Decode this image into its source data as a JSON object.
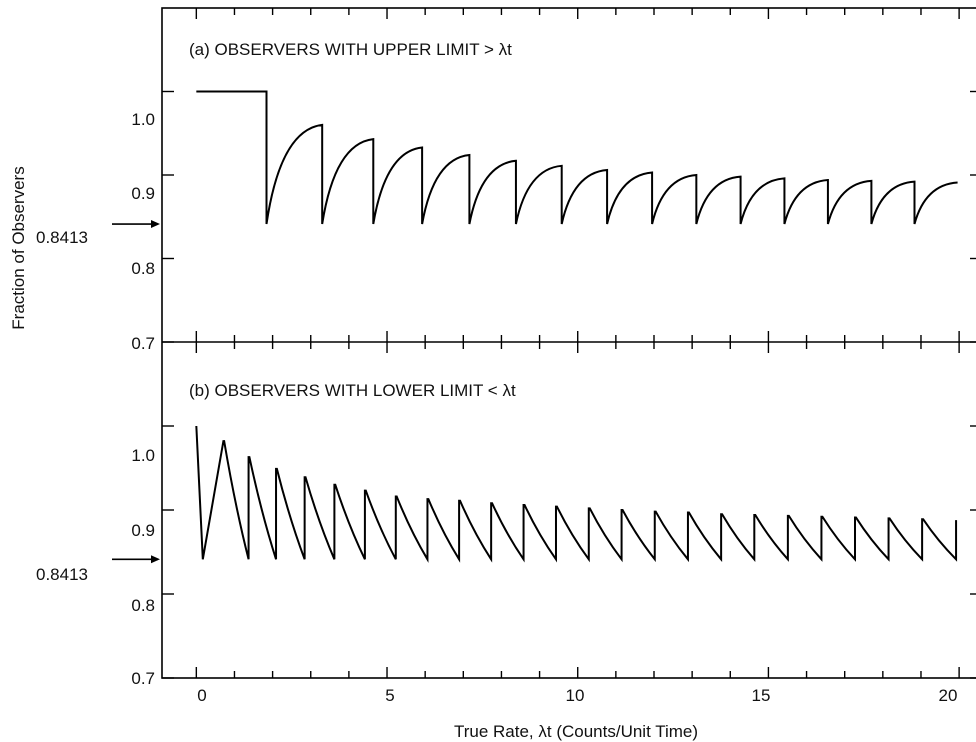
{
  "chart_data": {
    "type": "line",
    "ylabel": "Fraction of Observers",
    "xlabel": "True Rate, λt (Counts/Unit Time)",
    "x_ticks": [
      "0",
      "5",
      "10",
      "15",
      "20"
    ],
    "xlim": [
      -0.9,
      20.6
    ],
    "panels": [
      {
        "id": "a",
        "title": "(a) OBSERVERS WITH UPPER LIMIT > λt",
        "ylim": [
          0.7,
          1.1
        ],
        "y_ticks": [
          "1.0",
          "0.9",
          "0.8",
          "0.7"
        ],
        "y_tick_values": [
          1.0,
          0.9,
          0.8,
          0.7
        ],
        "reference": {
          "label": "0.8413",
          "value": 0.8413
        },
        "jump_x": [
          1.84,
          3.3,
          4.64,
          5.92,
          7.16,
          8.38,
          9.58,
          10.77,
          11.95,
          13.11,
          14.27,
          15.42,
          16.56,
          17.7,
          18.83,
          19.96
        ],
        "jump_top": [
          1.0,
          0.96,
          0.943,
          0.933,
          0.924,
          0.917,
          0.911,
          0.906,
          0.903,
          0.9,
          0.898,
          0.896,
          0.894,
          0.893,
          0.892,
          0.891
        ],
        "jump_bottom": 0.8413,
        "start": {
          "x": 0,
          "y": 1.0
        },
        "end_x": 19.96
      },
      {
        "id": "b",
        "title": "(b) OBSERVERS WITH LOWER LIMIT < λt",
        "ylim": [
          0.7,
          1.1
        ],
        "y_ticks": [
          "1.0",
          "0.9",
          "0.8",
          "0.7"
        ],
        "y_tick_values": [
          1.0,
          0.9,
          0.8,
          0.7
        ],
        "reference": {
          "label": "0.8413",
          "value": 0.8413
        },
        "jump_x": [
          0.17,
          0.71,
          1.37,
          2.09,
          2.84,
          3.62,
          4.42,
          5.23,
          6.06,
          6.89,
          7.73,
          8.58,
          9.43,
          10.29,
          11.15,
          12.02,
          12.89,
          13.76,
          14.63,
          15.51,
          16.39,
          17.27,
          18.15,
          19.03,
          19.92
        ],
        "jump_top": [
          1.0,
          0.982,
          0.963,
          0.949,
          0.939,
          0.93,
          0.923,
          0.916,
          0.913,
          0.911,
          0.908,
          0.906,
          0.904,
          0.902,
          0.9,
          0.898,
          0.897,
          0.895,
          0.894,
          0.893,
          0.892,
          0.891,
          0.89,
          0.889,
          0.888
        ],
        "jump_bottom": 0.8413,
        "start": {
          "x": 0,
          "y": 1.0
        },
        "end_x": 19.92
      }
    ]
  }
}
